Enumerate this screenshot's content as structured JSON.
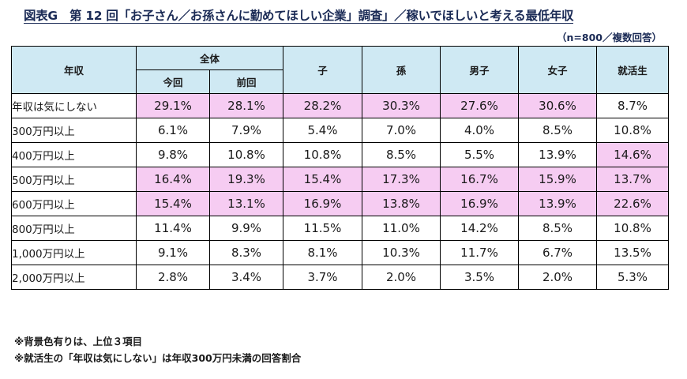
{
  "title": "図表G　第 12 回「お子さん／お孫さんに勤めてほしい企業」調査」／稼いでほしいと考える最低年収",
  "sample_note": "（n=800／複数回答）",
  "headers": {
    "row_label": "年収",
    "group_all": "全体",
    "current": "今回",
    "previous": "前回",
    "child": "子",
    "grandchild": "孫",
    "boy": "男子",
    "girl": "女子",
    "job_hunter": "就活生"
  },
  "rows": [
    {
      "label": "年収は気にしない",
      "values": [
        "29.1%",
        "28.1%",
        "28.2%",
        "30.3%",
        "27.6%",
        "30.6%",
        "8.7%"
      ],
      "highlight": [
        true,
        true,
        true,
        true,
        true,
        true,
        false
      ]
    },
    {
      "label": "300万円以上",
      "values": [
        "6.1%",
        "7.9%",
        "5.4%",
        "7.0%",
        "4.0%",
        "8.5%",
        "10.8%"
      ],
      "highlight": [
        false,
        false,
        false,
        false,
        false,
        false,
        false
      ]
    },
    {
      "label": "400万円以上",
      "values": [
        "9.8%",
        "10.8%",
        "10.8%",
        "8.5%",
        "5.5%",
        "13.9%",
        "14.6%"
      ],
      "highlight": [
        false,
        false,
        false,
        false,
        false,
        false,
        true
      ]
    },
    {
      "label": "500万円以上",
      "values": [
        "16.4%",
        "19.3%",
        "15.4%",
        "17.3%",
        "16.7%",
        "15.9%",
        "13.7%"
      ],
      "highlight": [
        true,
        true,
        true,
        true,
        true,
        true,
        true
      ]
    },
    {
      "label": "600万円以上",
      "values": [
        "15.4%",
        "13.1%",
        "16.9%",
        "13.8%",
        "16.9%",
        "13.9%",
        "22.6%"
      ],
      "highlight": [
        true,
        true,
        true,
        true,
        true,
        true,
        true
      ]
    },
    {
      "label": "800万円以上",
      "values": [
        "11.4%",
        "9.9%",
        "11.5%",
        "11.0%",
        "14.2%",
        "8.5%",
        "10.8%"
      ],
      "highlight": [
        false,
        false,
        false,
        false,
        false,
        false,
        false
      ]
    },
    {
      "label": "1,000万円以上",
      "values": [
        "9.1%",
        "8.3%",
        "8.1%",
        "10.3%",
        "11.7%",
        "6.7%",
        "13.5%"
      ],
      "highlight": [
        false,
        false,
        false,
        false,
        false,
        false,
        false
      ]
    },
    {
      "label": "2,000万円以上",
      "values": [
        "2.8%",
        "3.4%",
        "3.7%",
        "2.0%",
        "3.5%",
        "2.0%",
        "5.3%"
      ],
      "highlight": [
        false,
        false,
        false,
        false,
        false,
        false,
        false
      ]
    }
  ],
  "footnotes": [
    "※背景色有りは、上位３項目",
    "※就活生の「年収は気にしない」は年収300万円未満の回答割合"
  ],
  "colors": {
    "header_bg": "#cfe9f3",
    "highlight_bg": "#f6ccf2",
    "title_color": "#1a2a55"
  }
}
